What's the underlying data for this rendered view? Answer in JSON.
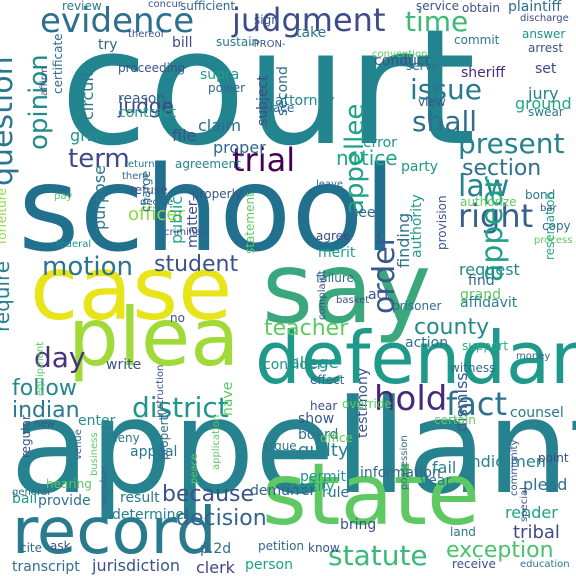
{
  "words": [
    {
      "text": "court",
      "color": "#22848e"
    },
    {
      "text": "school",
      "color": "#21708e"
    },
    {
      "text": "appellant",
      "color": "#26828e"
    },
    {
      "text": "say",
      "color": "#3aa77d"
    },
    {
      "text": "case",
      "color": "#e7e419"
    },
    {
      "text": "state",
      "color": "#5ec962"
    },
    {
      "text": "plea",
      "color": "#a0da39"
    },
    {
      "text": "defendant",
      "color": "#1f998a"
    },
    {
      "text": "record",
      "color": "#2a7a8e"
    },
    {
      "text": "evidence",
      "color": "#2d6f8e"
    },
    {
      "text": "judgment",
      "color": "#3e4c8a"
    },
    {
      "text": "time",
      "color": "#3bbb75"
    },
    {
      "text": "question",
      "color": "#2b758e"
    },
    {
      "text": "opinion",
      "color": "#228d8d"
    },
    {
      "text": "appellee",
      "color": "#1fa187"
    },
    {
      "text": "issue",
      "color": "#29798e"
    },
    {
      "text": "shall",
      "color": "#2d708e"
    },
    {
      "text": "present",
      "color": "#26828e"
    },
    {
      "text": "law",
      "color": "#25838e"
    },
    {
      "text": "right",
      "color": "#34618d"
    },
    {
      "text": "term",
      "color": "#3e4a89"
    },
    {
      "text": "trial",
      "color": "#440154"
    },
    {
      "text": "section",
      "color": "#2c728e"
    },
    {
      "text": "notice",
      "color": "#21a685"
    },
    {
      "text": "order",
      "color": "#38598c"
    },
    {
      "text": "appear",
      "color": "#1fa088"
    },
    {
      "text": "motion",
      "color": "#2c738e"
    },
    {
      "text": "student",
      "color": "#3b518b"
    },
    {
      "text": "county",
      "color": "#228c8d"
    },
    {
      "text": "teacher",
      "color": "#5ec962"
    },
    {
      "text": "day",
      "color": "#46327e"
    },
    {
      "text": "hold",
      "color": "#482878"
    },
    {
      "text": "district",
      "color": "#1f968b"
    },
    {
      "text": "fact",
      "color": "#2c718e"
    },
    {
      "text": "follow",
      "color": "#23888e"
    },
    {
      "text": "indian",
      "color": "#2a788e"
    },
    {
      "text": "because",
      "color": "#3b528b"
    },
    {
      "text": "decision",
      "color": "#32648e"
    },
    {
      "text": "statute",
      "color": "#3aba76"
    },
    {
      "text": "exception",
      "color": "#4ac16d"
    },
    {
      "text": "judge",
      "color": "#414487"
    },
    {
      "text": "require",
      "color": "#27808e"
    },
    {
      "text": "officer",
      "color": "#8fd744"
    },
    {
      "text": "public",
      "color": "#22a884"
    },
    {
      "text": "purpose",
      "color": "#2a788e"
    },
    {
      "text": "reason",
      "color": "#355f8d"
    },
    {
      "text": "claim",
      "color": "#2e6e8e"
    },
    {
      "text": "give",
      "color": "#21918c"
    },
    {
      "text": "file",
      "color": "#3b528b"
    },
    {
      "text": "proper",
      "color": "#31688e"
    },
    {
      "text": "agreement",
      "color": "#26828e"
    },
    {
      "text": "contract",
      "color": "#1fa088"
    },
    {
      "text": "circuit",
      "color": "#2a788e"
    },
    {
      "text": "attorney",
      "color": "#24868e"
    },
    {
      "text": "second",
      "color": "#2e6e8e"
    },
    {
      "text": "subject",
      "color": "#3e4a89"
    },
    {
      "text": "conduct",
      "color": "#3b528b"
    },
    {
      "text": "sheriff",
      "color": "#472d7b"
    },
    {
      "text": "jury",
      "color": "#26828e"
    },
    {
      "text": "ground",
      "color": "#22a884"
    },
    {
      "text": "swear",
      "color": "#2a788e"
    },
    {
      "text": "set",
      "color": "#3e4a89"
    },
    {
      "text": "view",
      "color": "#3b528b"
    },
    {
      "text": "party",
      "color": "#1f968b"
    },
    {
      "text": "error",
      "color": "#21918c"
    },
    {
      "text": "bond",
      "color": "#2a788e"
    },
    {
      "text": "finding",
      "color": "#2c728e"
    },
    {
      "text": "authority",
      "color": "#1f9e89"
    },
    {
      "text": "provision",
      "color": "#3b528b"
    },
    {
      "text": "see",
      "color": "#31688e"
    },
    {
      "text": "merit",
      "color": "#1fa188"
    },
    {
      "text": "agree",
      "color": "#3e4a89"
    },
    {
      "text": "grand",
      "color": "#5ec962"
    },
    {
      "text": "request",
      "color": "#23898e"
    },
    {
      "text": "find",
      "color": "#2e6e8e"
    },
    {
      "text": "affidavit",
      "color": "#26828e"
    },
    {
      "text": "support",
      "color": "#27ad81"
    },
    {
      "text": "reservation",
      "color": "#22a884"
    },
    {
      "text": "act",
      "color": "#3b528b"
    },
    {
      "text": "allege",
      "color": "#21918c"
    },
    {
      "text": "consider",
      "color": "#21918c"
    },
    {
      "text": "write",
      "color": "#3b528b"
    },
    {
      "text": "action",
      "color": "#2c728e"
    },
    {
      "text": "bail",
      "color": "#1f998a"
    },
    {
      "text": "venue",
      "color": "#31688e"
    },
    {
      "text": "deny",
      "color": "#2a788e"
    },
    {
      "text": "show",
      "color": "#38598c"
    },
    {
      "text": "board",
      "color": "#2c728e"
    },
    {
      "text": "guilty",
      "color": "#27808e"
    },
    {
      "text": "testimony",
      "color": "#3b528b"
    },
    {
      "text": "dismiss",
      "color": "#38598c"
    },
    {
      "text": "counsel",
      "color": "#2a788e"
    },
    {
      "text": "permit",
      "color": "#1f958b"
    },
    {
      "text": "rule",
      "color": "#2e6e8e"
    },
    {
      "text": "demurrer",
      "color": "#355f8d"
    },
    {
      "text": "argue",
      "color": "#2a788e"
    },
    {
      "text": "have",
      "color": "#5ec962"
    },
    {
      "text": "certify",
      "color": "#1f998a"
    },
    {
      "text": "information",
      "color": "#31688e"
    },
    {
      "text": "fail",
      "color": "#26828e"
    },
    {
      "text": "indictment",
      "color": "#25848e"
    },
    {
      "text": "plead",
      "color": "#2c728e"
    },
    {
      "text": "render",
      "color": "#1fa188"
    },
    {
      "text": "tribal",
      "color": "#3e4a89"
    },
    {
      "text": "year",
      "color": "#2a788e"
    },
    {
      "text": "result",
      "color": "#2a788e"
    },
    {
      "text": "determine",
      "color": "#26828e"
    },
    {
      "text": "provide",
      "color": "#2c728e"
    },
    {
      "text": "hearing",
      "color": "#5ec962"
    },
    {
      "text": "general",
      "color": "#2e6e8e"
    },
    {
      "text": "transcript",
      "color": "#2e6e8e"
    },
    {
      "text": "jurisdiction",
      "color": "#3b528b"
    },
    {
      "text": "clerk",
      "color": "#414487"
    },
    {
      "text": "person",
      "color": "#1fa088"
    },
    {
      "text": "bring",
      "color": "#3b528b"
    },
    {
      "text": "land",
      "color": "#2a788e"
    },
    {
      "text": "point",
      "color": "#3e4a89"
    },
    {
      "text": "review",
      "color": "#2a788e"
    },
    {
      "text": "concur",
      "color": "#3b528b"
    },
    {
      "text": "sufficient",
      "color": "#31688e"
    },
    {
      "text": "plaintiff",
      "color": "#2e6e8e"
    },
    {
      "text": "service",
      "color": "#3b528b"
    },
    {
      "text": "obtain",
      "color": "#3b528b"
    },
    {
      "text": "discharge",
      "color": "#3e4a89"
    },
    {
      "text": "answer",
      "color": "#21918c"
    },
    {
      "text": "arrest",
      "color": "#3b528b"
    },
    {
      "text": "commit",
      "color": "#2a788e"
    },
    {
      "text": "take",
      "color": "#2a788e"
    },
    {
      "text": "sustain",
      "color": "#2a788e"
    },
    {
      "text": "bill",
      "color": "#3e4a89"
    },
    {
      "text": "thereof",
      "color": "#3b528b"
    },
    {
      "text": "try",
      "color": "#31688e"
    },
    {
      "text": "sign",
      "color": "#3b528b"
    },
    {
      "text": "-PRON-",
      "color": "#3b528b"
    },
    {
      "text": "serve",
      "color": "#2e6e8e"
    },
    {
      "text": "proceeding",
      "color": "#3b528b"
    },
    {
      "text": "supra",
      "color": "#1f9e89"
    },
    {
      "text": "power",
      "color": "#31688e"
    },
    {
      "text": "certificate",
      "color": "#2e6e8e"
    },
    {
      "text": "affirm",
      "color": "#3b528b"
    },
    {
      "text": "place",
      "color": "#31688e"
    },
    {
      "text": "refuse",
      "color": "#3b528b"
    },
    {
      "text": "decide",
      "color": "#31688e"
    },
    {
      "text": "charge",
      "color": "#2e6e8e"
    },
    {
      "text": "federal",
      "color": "#21918c"
    },
    {
      "text": "forfeiture",
      "color": "#8fd744"
    },
    {
      "text": "pay",
      "color": "#5ec962"
    },
    {
      "text": "properly",
      "color": "#3b528b"
    },
    {
      "text": "criminal",
      "color": "#3b528b"
    },
    {
      "text": "return",
      "color": "#2a788e"
    },
    {
      "text": "there",
      "color": "#31688e"
    },
    {
      "text": "leave",
      "color": "#31688e"
    },
    {
      "text": "prisoner",
      "color": "#2e6e8e"
    },
    {
      "text": "statement",
      "color": "#5ec962"
    },
    {
      "text": "matter",
      "color": "#3e4a89"
    },
    {
      "text": "failure",
      "color": "#2e6e8e"
    },
    {
      "text": "basket",
      "color": "#3b528b"
    },
    {
      "text": "complaint",
      "color": "#3b528b"
    },
    {
      "text": "effect",
      "color": "#31688e"
    },
    {
      "text": "witness",
      "color": "#2e6e8e"
    },
    {
      "text": "money",
      "color": "#31688e"
    },
    {
      "text": "enter",
      "color": "#21918c"
    },
    {
      "text": "new",
      "color": "#3b528b"
    },
    {
      "text": "appeal",
      "color": "#2a788e"
    },
    {
      "text": "instruction",
      "color": "#3b528b"
    },
    {
      "text": "property",
      "color": "#31688e"
    },
    {
      "text": "business",
      "color": "#5ec962"
    },
    {
      "text": "regular",
      "color": "#3b528b"
    },
    {
      "text": "ask",
      "color": "#3b528b"
    },
    {
      "text": "cite",
      "color": "#31688e"
    },
    {
      "text": "p.2d",
      "color": "#2e6e8e"
    },
    {
      "text": "know",
      "color": "#3b528b"
    },
    {
      "text": "petition",
      "color": "#31688e"
    },
    {
      "text": "receive",
      "color": "#3b528b"
    },
    {
      "text": "education",
      "color": "#2a788e"
    },
    {
      "text": "special",
      "color": "#3b528b"
    },
    {
      "text": "community",
      "color": "#3b528b"
    },
    {
      "text": "possession",
      "color": "#2e6e8e"
    },
    {
      "text": "certain",
      "color": "#5ec962"
    },
    {
      "text": "application",
      "color": "#5ec962"
    },
    {
      "text": "override",
      "color": "#5ec962"
    },
    {
      "text": "no",
      "color": "#3b528b"
    },
    {
      "text": "office",
      "color": "#5ec962"
    },
    {
      "text": "hear",
      "color": "#3b528b"
    },
    {
      "text": "peace",
      "color": "#5ec962"
    },
    {
      "text": "member",
      "color": "#31688e"
    },
    {
      "text": "copy",
      "color": "#2e6e8e"
    },
    {
      "text": "bar",
      "color": "#3b528b"
    },
    {
      "text": "process",
      "color": "#5ec962"
    },
    {
      "text": "authorize",
      "color": "#5ec962"
    },
    {
      "text": "convention",
      "color": "#5ec962"
    },
    {
      "text": "equipment",
      "color": "#5ec962"
    }
  ]
}
